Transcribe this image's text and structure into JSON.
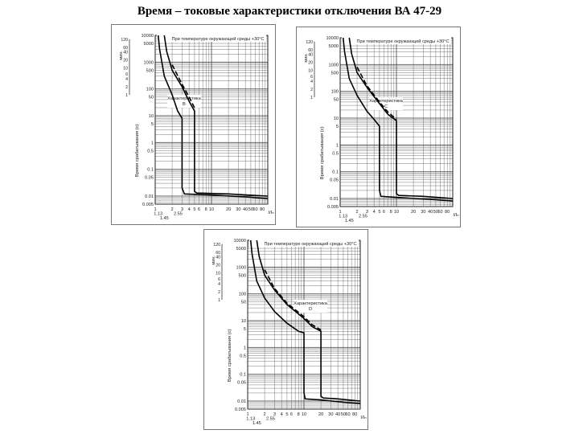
{
  "page": {
    "title": "Время – токовые характеристики отключения ВА 47-29"
  },
  "chart_data": [
    {
      "type": "line",
      "title": "При температуре окружающей среды +30°C",
      "characteristic_label": [
        "Характеристика",
        "B"
      ],
      "ylabel": "Время срабатывания (с)",
      "ylabel_minutes": "мин.",
      "xlabel": "I/Iₙ",
      "x_scale": "log",
      "y_scale": "log",
      "xlim": [
        1,
        100
      ],
      "ylim": [
        0.005,
        10000
      ],
      "x_ticks": [
        "1",
        "1.13",
        "1.45",
        "2",
        "2.55",
        "3",
        "4",
        "5",
        "6",
        "8",
        "10",
        "20",
        "30",
        "40",
        "50",
        "60",
        "80"
      ],
      "y_ticks_seconds": [
        "10000",
        "5000",
        "1000",
        "500",
        "100",
        "50",
        "10",
        "5",
        "1",
        "0.5",
        "0.1",
        "0.05",
        "0.01",
        "0.005"
      ],
      "y_ticks_minutes": [
        "120",
        "60",
        "40",
        "20",
        "10",
        "6",
        "4",
        "2",
        "1"
      ],
      "series": [
        {
          "values": [
            [
              1.13,
              10000
            ],
            [
              1.2,
              3000
            ],
            [
              1.45,
              300
            ],
            [
              2,
              60
            ],
            [
              2.5,
              15
            ],
            [
              3,
              8
            ],
            [
              3,
              0.02
            ],
            [
              3.3,
              0.012
            ],
            [
              10,
              0.011
            ],
            [
              50,
              0.009
            ],
            [
              100,
              0.008
            ]
          ]
        },
        {
          "values": [
            [
              1.45,
              10000
            ],
            [
              1.6,
              2500
            ],
            [
              2,
              500
            ],
            [
              3,
              120
            ],
            [
              4,
              35
            ],
            [
              5,
              15
            ],
            [
              5,
              0.015
            ],
            [
              5.5,
              0.013
            ],
            [
              20,
              0.012
            ],
            [
              100,
              0.01
            ]
          ]
        },
        {
          "values": [
            [
              2,
              800
            ],
            [
              3,
              150
            ],
            [
              4,
              50
            ],
            [
              5,
              20
            ]
          ]
        }
      ]
    },
    {
      "type": "line",
      "title": "При температуре окружающей среды +30°C",
      "characteristic_label": [
        "Характеристика",
        "C"
      ],
      "ylabel": "Время срабатывания (с)",
      "ylabel_minutes": "мин.",
      "xlabel": "I/Iₙ",
      "x_scale": "log",
      "y_scale": "log",
      "xlim": [
        1,
        100
      ],
      "ylim": [
        0.005,
        10000
      ],
      "x_ticks": [
        "1",
        "1.13",
        "1.45",
        "2",
        "2.55",
        "3",
        "4",
        "5",
        "6",
        "8",
        "10",
        "20",
        "30",
        "40",
        "50",
        "60",
        "80"
      ],
      "y_ticks_seconds": [
        "10000",
        "5000",
        "1000",
        "500",
        "100",
        "50",
        "10",
        "5",
        "1",
        "0.5",
        "0.1",
        "0.05",
        "0.01",
        "0.005"
      ],
      "y_ticks_minutes": [
        "120",
        "60",
        "40",
        "20",
        "10",
        "6",
        "4",
        "2",
        "1"
      ],
      "series": [
        {
          "values": [
            [
              1.13,
              10000
            ],
            [
              1.2,
              3000
            ],
            [
              1.45,
              300
            ],
            [
              2,
              70
            ],
            [
              3,
              18
            ],
            [
              4,
              9
            ],
            [
              5,
              5
            ],
            [
              5,
              0.02
            ],
            [
              5.3,
              0.012
            ],
            [
              10,
              0.011
            ],
            [
              50,
              0.009
            ],
            [
              100,
              0.008
            ]
          ]
        },
        {
          "values": [
            [
              1.45,
              10000
            ],
            [
              1.6,
              2500
            ],
            [
              2,
              500
            ],
            [
              3,
              140
            ],
            [
              5,
              35
            ],
            [
              7,
              14
            ],
            [
              10,
              8
            ],
            [
              10,
              0.015
            ],
            [
              11,
              0.013
            ],
            [
              30,
              0.012
            ],
            [
              100,
              0.01
            ]
          ]
        },
        {
          "values": [
            [
              2,
              800
            ],
            [
              3,
              160
            ],
            [
              5,
              40
            ],
            [
              7,
              17
            ],
            [
              10,
              9
            ]
          ]
        }
      ]
    },
    {
      "type": "line",
      "title": "При температуре окружающей среды +30°C",
      "characteristic_label": [
        "Характеристика",
        "D"
      ],
      "ylabel": "Время срабатывания (с)",
      "ylabel_minutes": "мин.",
      "xlabel": "I/Iₙ",
      "x_scale": "log",
      "y_scale": "log",
      "xlim": [
        1,
        100
      ],
      "ylim": [
        0.005,
        10000
      ],
      "x_ticks": [
        "1",
        "1.13",
        "1.45",
        "2",
        "2.55",
        "3",
        "4",
        "5",
        "6",
        "8",
        "10",
        "20",
        "30",
        "40",
        "50",
        "60",
        "80"
      ],
      "y_ticks_seconds": [
        "10000",
        "5000",
        "1000",
        "500",
        "100",
        "50",
        "10",
        "5",
        "1",
        "0.5",
        "0.1",
        "0.05",
        "0.01",
        "0.005"
      ],
      "y_ticks_minutes": [
        "120",
        "60",
        "40",
        "20",
        "10",
        "6",
        "4",
        "2",
        "1"
      ],
      "series": [
        {
          "values": [
            [
              1.13,
              10000
            ],
            [
              1.2,
              3000
            ],
            [
              1.45,
              300
            ],
            [
              2,
              70
            ],
            [
              3,
              22
            ],
            [
              5,
              8
            ],
            [
              8,
              4
            ],
            [
              10,
              3.5
            ],
            [
              10,
              0.02
            ],
            [
              10.5,
              0.012
            ],
            [
              20,
              0.011
            ],
            [
              50,
              0.009
            ],
            [
              100,
              0.008
            ]
          ]
        },
        {
          "values": [
            [
              1.45,
              10000
            ],
            [
              1.6,
              2500
            ],
            [
              2,
              500
            ],
            [
              3,
              140
            ],
            [
              5,
              40
            ],
            [
              10,
              12
            ],
            [
              14,
              6
            ],
            [
              20,
              4
            ],
            [
              20,
              0.015
            ],
            [
              22,
              0.013
            ],
            [
              40,
              0.012
            ],
            [
              100,
              0.01
            ]
          ]
        },
        {
          "values": [
            [
              2,
              800
            ],
            [
              3,
              160
            ],
            [
              5,
              45
            ],
            [
              10,
              14
            ],
            [
              14,
              7
            ],
            [
              20,
              4.5
            ]
          ]
        }
      ]
    }
  ]
}
